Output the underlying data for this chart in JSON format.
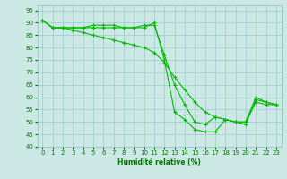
{
  "xlabel": "Humidité relative (%)",
  "background_color": "#cce8e4",
  "grid_color": "#99cccc",
  "line_color": "#00bb00",
  "xlim": [
    -0.5,
    23.5
  ],
  "ylim": [
    40,
    97
  ],
  "yticks": [
    40,
    45,
    50,
    55,
    60,
    65,
    70,
    75,
    80,
    85,
    90,
    95
  ],
  "xticks": [
    0,
    1,
    2,
    3,
    4,
    5,
    6,
    7,
    8,
    9,
    10,
    11,
    12,
    13,
    14,
    15,
    16,
    17,
    18,
    19,
    20,
    21,
    22,
    23
  ],
  "line1_x": [
    0,
    1,
    2,
    3,
    4,
    5,
    6,
    7,
    8,
    9,
    10,
    11,
    12,
    13,
    14,
    15,
    16,
    17,
    18,
    19,
    20,
    21,
    22,
    23
  ],
  "line1_y": [
    91,
    88,
    88,
    88,
    88,
    88,
    88,
    88,
    88,
    88,
    88,
    90,
    75,
    54,
    51,
    47,
    46,
    46,
    51,
    50,
    49,
    59,
    58,
    57
  ],
  "line2_x": [
    0,
    1,
    2,
    3,
    4,
    5,
    6,
    7,
    8,
    9,
    10,
    11,
    12,
    13,
    14,
    15,
    16,
    17,
    18,
    19,
    20,
    21,
    22,
    23
  ],
  "line2_y": [
    91,
    88,
    88,
    87,
    86,
    85,
    84,
    83,
    82,
    81,
    80,
    78,
    74,
    68,
    63,
    58,
    54,
    52,
    51,
    50,
    50,
    58,
    57,
    57
  ],
  "line3_x": [
    0,
    1,
    2,
    3,
    4,
    5,
    6,
    7,
    8,
    9,
    10,
    11,
    12,
    13,
    14,
    15,
    16,
    17,
    18,
    19,
    20,
    21,
    22,
    23
  ],
  "line3_y": [
    91,
    88,
    88,
    88,
    88,
    89,
    89,
    89,
    88,
    88,
    89,
    89,
    77,
    65,
    57,
    50,
    49,
    52,
    51,
    50,
    50,
    60,
    58,
    57
  ]
}
